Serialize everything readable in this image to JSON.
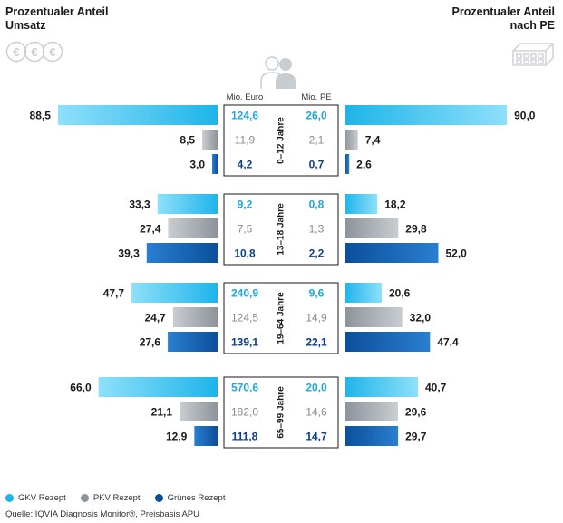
{
  "header": {
    "left_line1": "Prozentualer Anteil",
    "left_line2": "Umsatz",
    "right_line1": "Prozentualer Anteil",
    "right_line2": "nach PE"
  },
  "icons": {
    "left": "euro-coins-icon",
    "center": "people-icon",
    "right": "medicine-packs-icon"
  },
  "colors": {
    "gkv": "#1eb4ea",
    "pkv": "#8c939a",
    "gruenes": "#0b4f9b",
    "gkv_text": "#1ea8e0",
    "pkv_text": "#8a8a8a",
    "gruenes_text": "#0d3f86"
  },
  "chart_data": {
    "type": "bar",
    "column_headers": {
      "euro": "Mio. Euro",
      "pe": "Mio. PE"
    },
    "series_names": [
      "GKV Rezept",
      "PKV Rezept",
      "Grünes Rezept"
    ],
    "groups": [
      {
        "label": "0–12 Jahre",
        "umsatz_share": [
          "88,5",
          "8,5",
          "3,0"
        ],
        "umsatz_values": [
          88.5,
          8.5,
          3.0
        ],
        "mio_euro": [
          "124,6",
          "11,9",
          "4,2"
        ],
        "mio_pe": [
          "26,0",
          "2,1",
          "0,7"
        ],
        "pe_share": [
          "90,0",
          "7,4",
          "2,6"
        ],
        "pe_values": [
          90.0,
          7.4,
          2.6
        ]
      },
      {
        "label": "13–18 Jahre",
        "umsatz_share": [
          "33,3",
          "27,4",
          "39,3"
        ],
        "umsatz_values": [
          33.3,
          27.4,
          39.3
        ],
        "mio_euro": [
          "9,2",
          "7,5",
          "10,8"
        ],
        "mio_pe": [
          "0,8",
          "1,3",
          "2,2"
        ],
        "pe_share": [
          "18,2",
          "29,8",
          "52,0"
        ],
        "pe_values": [
          18.2,
          29.8,
          52.0
        ]
      },
      {
        "label": "19–64 Jahre",
        "umsatz_share": [
          "47,7",
          "24,7",
          "27,6"
        ],
        "umsatz_values": [
          47.7,
          24.7,
          27.6
        ],
        "mio_euro": [
          "240,9",
          "124,5",
          "139,1"
        ],
        "mio_pe": [
          "9,6",
          "14,9",
          "22,1"
        ],
        "pe_share": [
          "20,6",
          "32,0",
          "47,4"
        ],
        "pe_values": [
          20.6,
          32.0,
          47.4
        ]
      },
      {
        "label": "65–99 Jahre",
        "umsatz_share": [
          "66,0",
          "21,1",
          "12,9"
        ],
        "umsatz_values": [
          66.0,
          21.1,
          12.9
        ],
        "mio_euro": [
          "570,6",
          "182,0",
          "111,8"
        ],
        "mio_pe": [
          "20,0",
          "14,6",
          "14,7"
        ],
        "pe_share": [
          "40,7",
          "29,6",
          "29,7"
        ],
        "pe_values": [
          40.7,
          29.6,
          29.7
        ]
      }
    ]
  },
  "legend": {
    "gkv": "GKV Rezept",
    "pkv": "PKV Rezept",
    "gruenes": "Grünes Rezept"
  },
  "source": "Quelle: IQVIA Diagnosis Monitor®, Preisbasis APU"
}
